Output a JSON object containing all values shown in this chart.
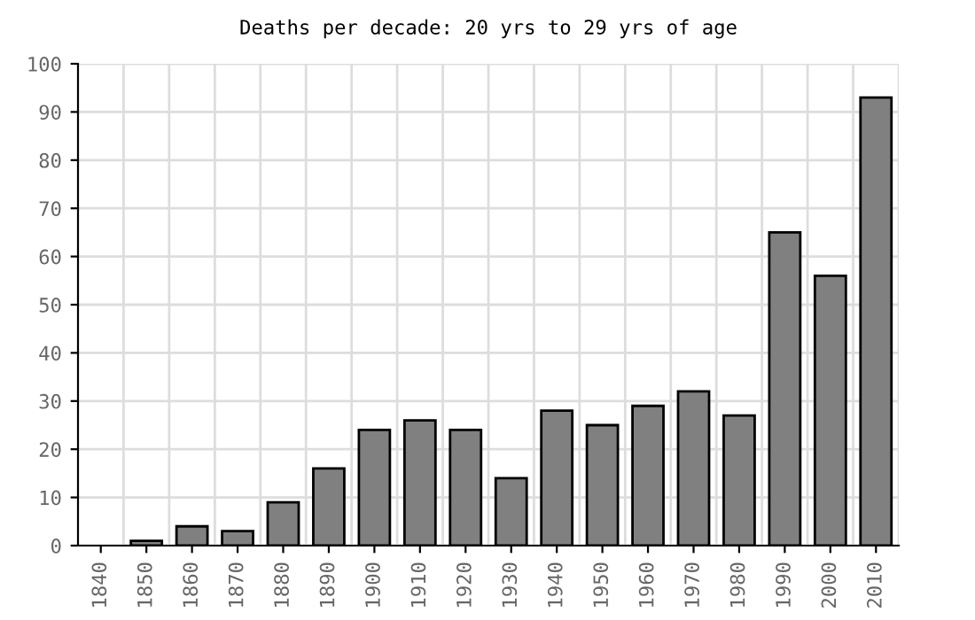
{
  "chart_data": {
    "type": "bar",
    "title": "Deaths per decade: 20 yrs to 29 yrs of age",
    "categories": [
      "1840",
      "1850",
      "1860",
      "1870",
      "1880",
      "1890",
      "1900",
      "1910",
      "1920",
      "1930",
      "1940",
      "1950",
      "1960",
      "1970",
      "1980",
      "1990",
      "2000",
      "2010"
    ],
    "values": [
      0,
      1,
      4,
      3,
      9,
      16,
      24,
      26,
      24,
      14,
      28,
      25,
      29,
      32,
      27,
      65,
      56,
      93
    ],
    "color": "#808080",
    "ylim": [
      0,
      100
    ],
    "yticks": [
      0,
      10,
      20,
      30,
      40,
      50,
      60,
      70,
      80,
      90,
      100
    ],
    "grid": true
  }
}
